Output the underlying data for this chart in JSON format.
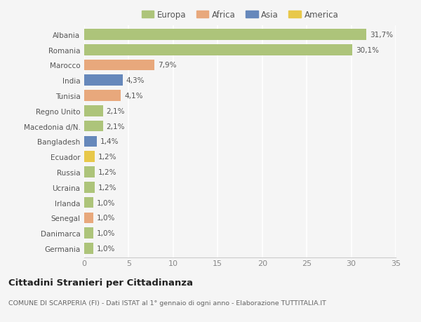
{
  "countries": [
    "Albania",
    "Romania",
    "Marocco",
    "India",
    "Tunisia",
    "Regno Unito",
    "Macedonia d/N.",
    "Bangladesh",
    "Ecuador",
    "Russia",
    "Ucraina",
    "Irlanda",
    "Senegal",
    "Danimarca",
    "Germania"
  ],
  "values": [
    31.7,
    30.1,
    7.9,
    4.3,
    4.1,
    2.1,
    2.1,
    1.4,
    1.2,
    1.2,
    1.2,
    1.0,
    1.0,
    1.0,
    1.0
  ],
  "labels": [
    "31,7%",
    "30,1%",
    "7,9%",
    "4,3%",
    "4,1%",
    "2,1%",
    "2,1%",
    "1,4%",
    "1,2%",
    "1,2%",
    "1,2%",
    "1,0%",
    "1,0%",
    "1,0%",
    "1,0%"
  ],
  "continents": [
    "Europa",
    "Europa",
    "Africa",
    "Asia",
    "Africa",
    "Europa",
    "Europa",
    "Asia",
    "America",
    "Europa",
    "Europa",
    "Europa",
    "Africa",
    "Europa",
    "Europa"
  ],
  "colors": {
    "Europa": "#adc47a",
    "Africa": "#e8a87c",
    "Asia": "#6688bb",
    "America": "#e8c84a"
  },
  "legend_labels": [
    "Europa",
    "Africa",
    "Asia",
    "America"
  ],
  "legend_colors": [
    "#adc47a",
    "#e8a87c",
    "#6688bb",
    "#e8c84a"
  ],
  "xlim": [
    0,
    35
  ],
  "xticks": [
    0,
    5,
    10,
    15,
    20,
    25,
    30,
    35
  ],
  "title": "Cittadini Stranieri per Cittadinanza",
  "subtitle": "COMUNE DI SCARPERIA (FI) - Dati ISTAT al 1° gennaio di ogni anno - Elaborazione TUTTITALIA.IT",
  "background_color": "#f5f5f5",
  "bar_height": 0.72,
  "gridcolor": "#ffffff",
  "label_fontsize": 7.5,
  "ytick_fontsize": 7.5,
  "xtick_fontsize": 8.0
}
